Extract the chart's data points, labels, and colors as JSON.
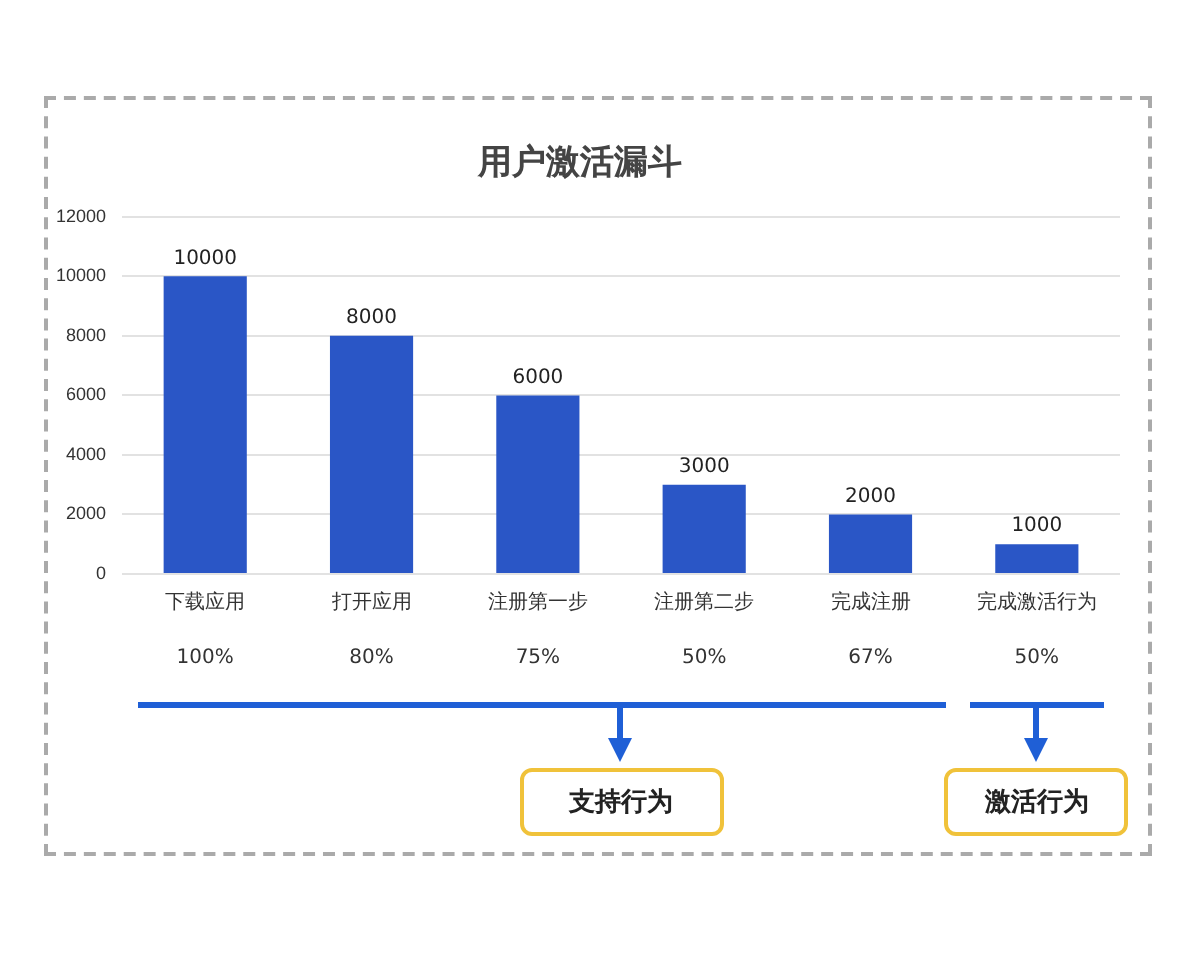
{
  "chart_data": {
    "type": "bar",
    "title": "用户激活漏斗",
    "categories": [
      "下载应用",
      "打开应用",
      "注册第一步",
      "注册第二步",
      "完成注册",
      "完成激活行为"
    ],
    "values": [
      10000,
      8000,
      6000,
      3000,
      2000,
      1000
    ],
    "color": "#2a56c6",
    "ylim": [
      0,
      12000
    ],
    "yticks": [
      0,
      2000,
      4000,
      6000,
      8000,
      10000,
      12000
    ],
    "grid": "y",
    "data_labels": true,
    "legend": false,
    "annotations": [
      "100%",
      "80%",
      "75%",
      "50%",
      "67%",
      "50%",
      "支持行为",
      "激活行为"
    ]
  }
}
